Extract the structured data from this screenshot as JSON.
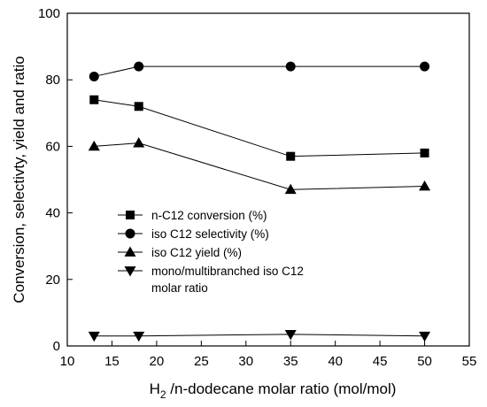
{
  "chart_data": {
    "type": "line",
    "xlabel": {
      "prefix": "H",
      "sub": "2",
      "suffix": " /n-dodecane molar ratio (mol/mol)"
    },
    "ylabel": "Conversion, selectivty, yield and ratio",
    "xlim": [
      10,
      55
    ],
    "ylim": [
      0,
      100
    ],
    "xticks": [
      10,
      15,
      20,
      25,
      30,
      35,
      40,
      45,
      50,
      55
    ],
    "yticks": [
      0,
      20,
      40,
      60,
      80,
      100
    ],
    "grid": false,
    "legend_position": "center-left",
    "x": [
      13,
      18,
      35,
      50
    ],
    "series": [
      {
        "name": "n-C12 conversion (%)",
        "marker": "square",
        "values": [
          74,
          72,
          57,
          58
        ]
      },
      {
        "name": "iso C12 selectivity (%)",
        "marker": "circle",
        "values": [
          81,
          84,
          84,
          84
        ]
      },
      {
        "name": "iso C12 yield (%)",
        "marker": "triangle-up",
        "values": [
          60,
          61,
          47,
          48
        ]
      },
      {
        "name": "mono/multibranched iso C12",
        "name_line2": "molar ratio",
        "marker": "triangle-down",
        "values": [
          3,
          3,
          3.5,
          3
        ]
      }
    ],
    "colors": {
      "line": "#000000",
      "marker": "#000000"
    }
  }
}
